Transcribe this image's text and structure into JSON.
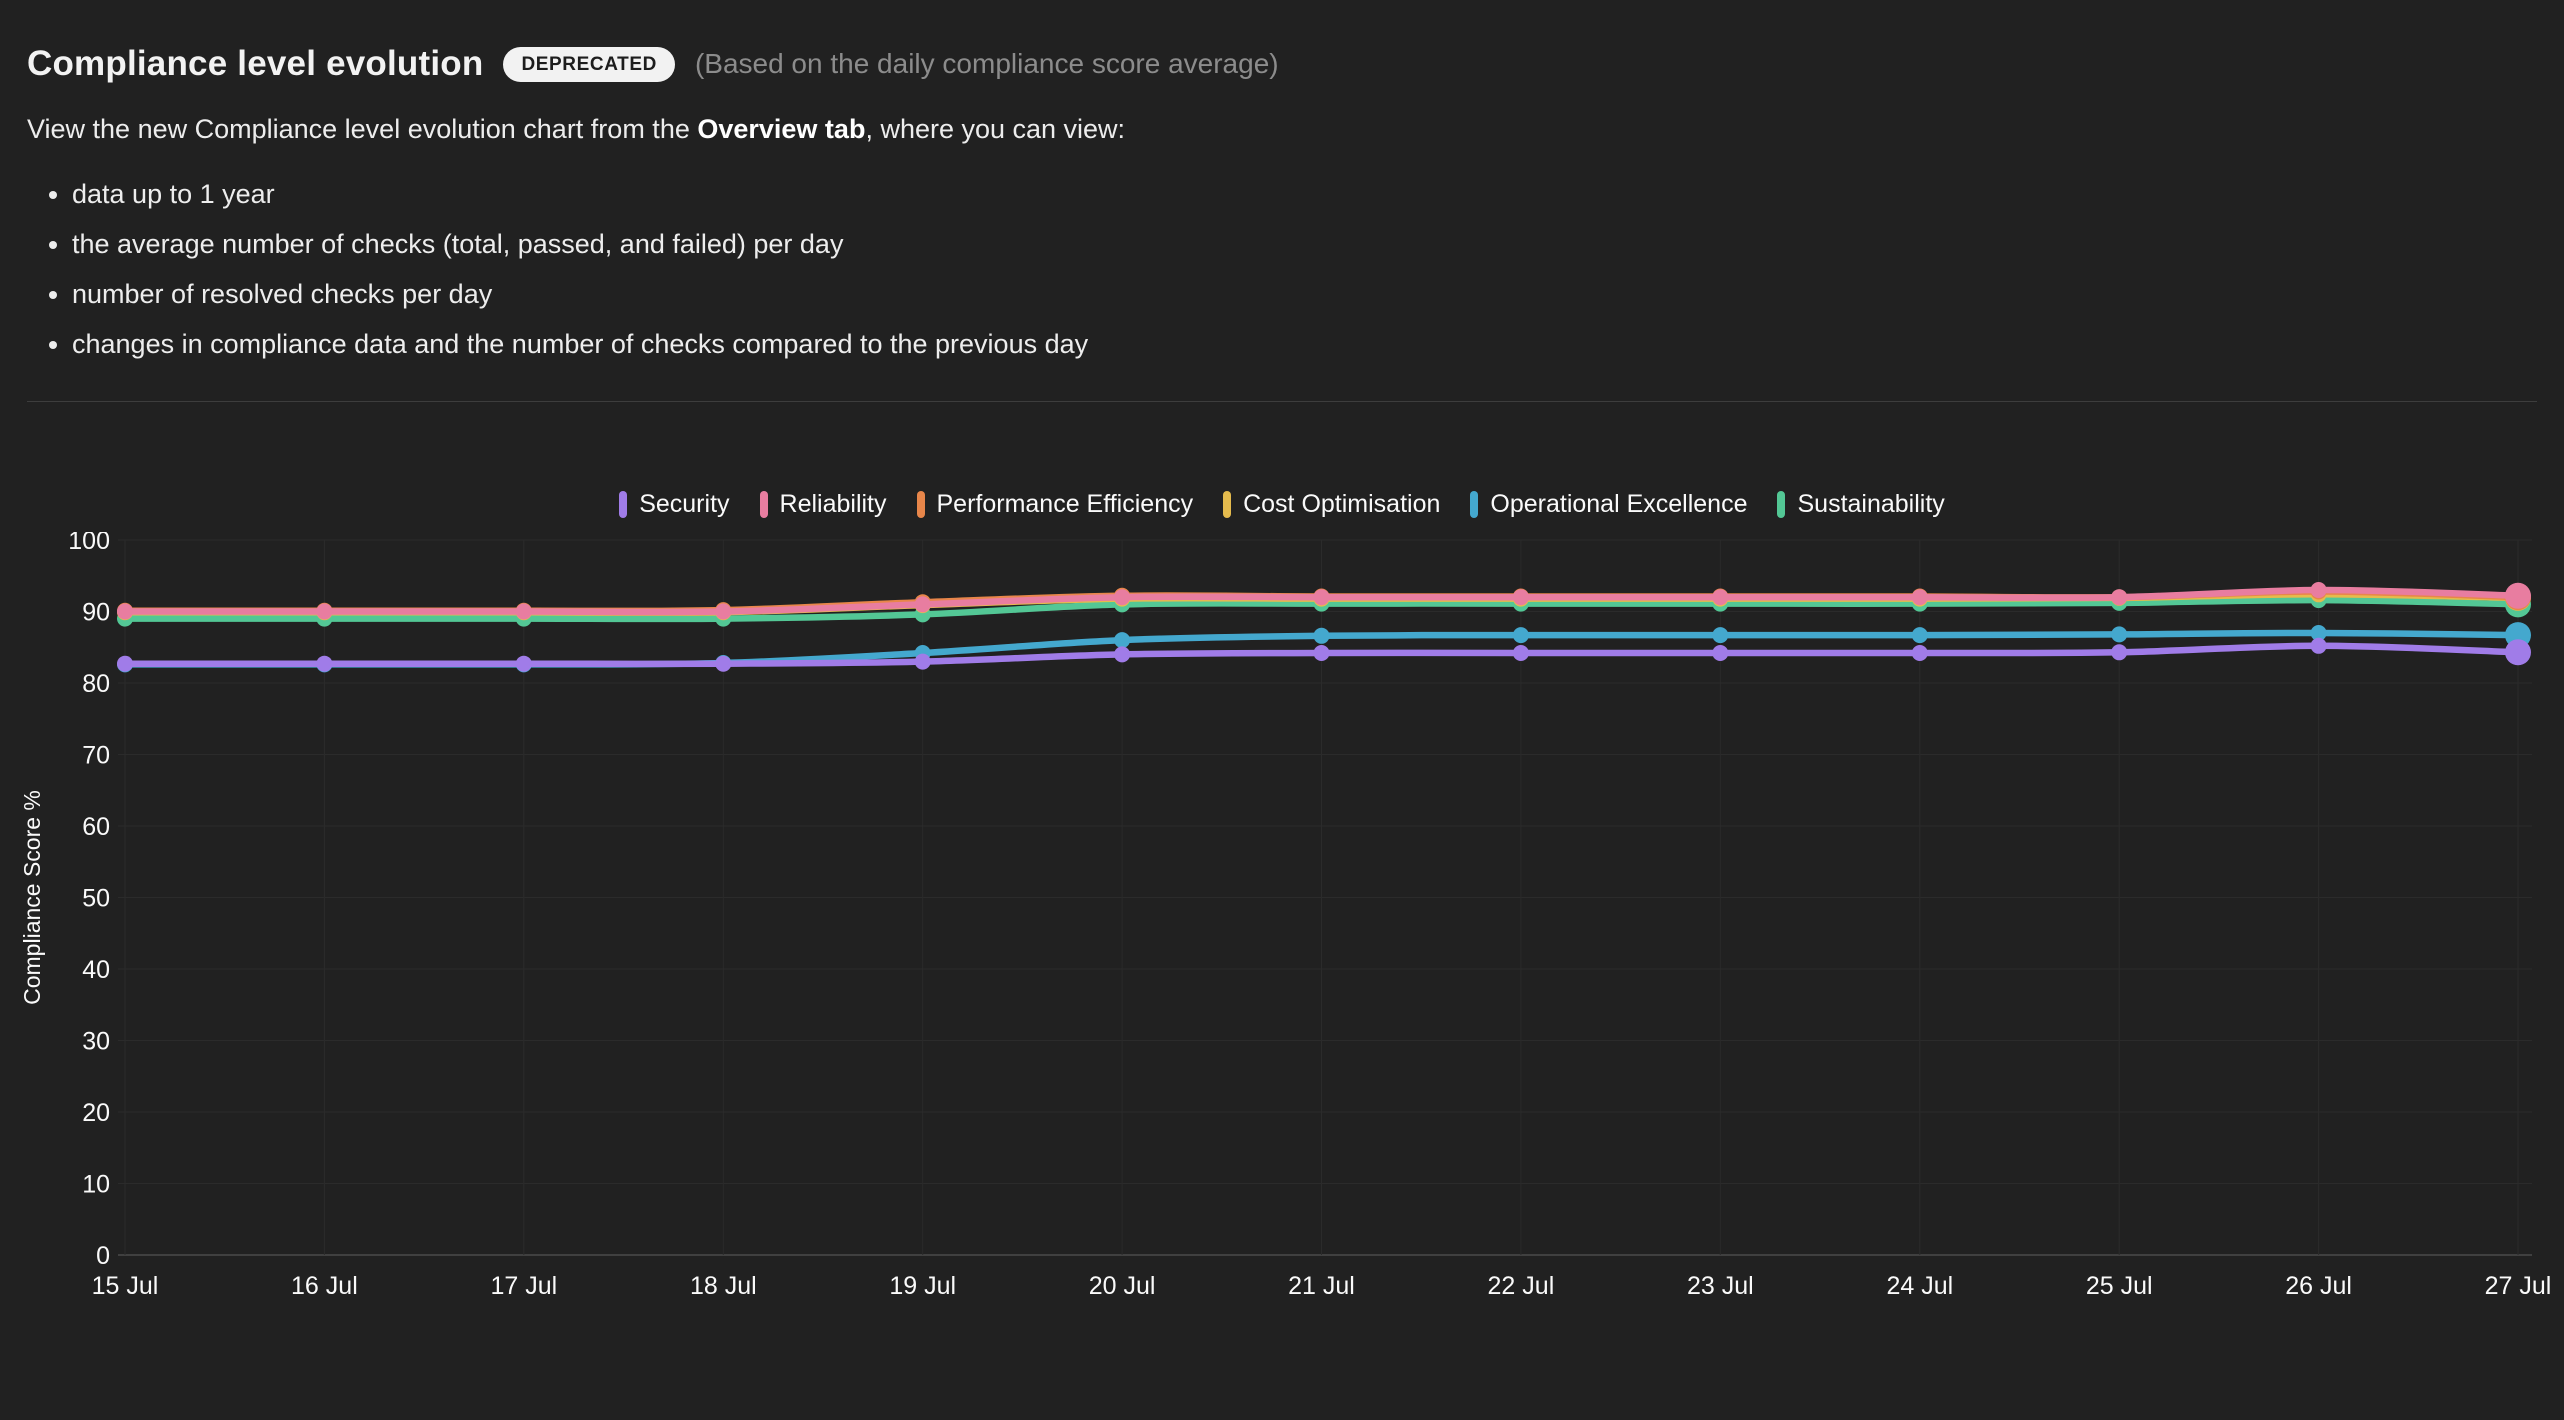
{
  "header": {
    "title": "Compliance level evolution",
    "badge": "DEPRECATED",
    "subtitle": "(Based on the daily compliance score average)"
  },
  "description": {
    "prefix": "View the new Compliance level evolution chart from the ",
    "bold": "Overview tab",
    "suffix": ", where you can view:",
    "bullets": [
      "data up to 1 year",
      "the average number of checks (total, passed, and failed) per day",
      "number of resolved checks per day",
      "changes in compliance data and the number of checks compared to the previous day"
    ]
  },
  "theme": {
    "background": "#212121",
    "text": "#f2f2f2",
    "muted": "#8c8c8c",
    "badge_bg": "#f2f2f2",
    "badge_text": "#1d1d1d",
    "grid": "#2b2b2b",
    "axis_line": "#4a4a4a",
    "divider": "#3d3d3d"
  },
  "chart_data": {
    "type": "line",
    "title": "Compliance level evolution",
    "xlabel": "",
    "ylabel": "Compliance Score %",
    "ylim": [
      0,
      100
    ],
    "yticks": [
      0,
      10,
      20,
      30,
      40,
      50,
      60,
      70,
      80,
      90,
      100
    ],
    "grid": true,
    "legend_position": "top",
    "x": [
      "15 Jul",
      "16 Jul",
      "17 Jul",
      "18 Jul",
      "19 Jul",
      "20 Jul",
      "21 Jul",
      "22 Jul",
      "23 Jul",
      "24 Jul",
      "25 Jul",
      "26 Jul",
      "27 Jul"
    ],
    "series": [
      {
        "name": "Security",
        "color": "#A07CE8",
        "values": [
          82.7,
          82.7,
          82.7,
          82.7,
          83.0,
          84.0,
          84.2,
          84.2,
          84.2,
          84.2,
          84.3,
          85.2,
          84.3
        ]
      },
      {
        "name": "Reliability",
        "color": "#E87DA0",
        "values": [
          90.0,
          90.0,
          90.0,
          90.0,
          91.0,
          92.0,
          92.0,
          92.0,
          92.0,
          92.0,
          92.0,
          93.0,
          92.2
        ]
      },
      {
        "name": "Performance Efficiency",
        "color": "#E8864A",
        "values": [
          90.1,
          90.1,
          90.1,
          90.2,
          91.3,
          92.2,
          92.1,
          92.1,
          92.1,
          92.1,
          92.0,
          92.8,
          92.0
        ]
      },
      {
        "name": "Cost Optimisation",
        "color": "#E5BB4D",
        "values": [
          89.9,
          89.9,
          89.9,
          89.9,
          90.9,
          91.8,
          91.8,
          91.8,
          91.8,
          91.8,
          91.9,
          92.4,
          91.9
        ]
      },
      {
        "name": "Operational Excellence",
        "color": "#44A8CE",
        "values": [
          82.6,
          82.6,
          82.6,
          82.8,
          84.2,
          86.0,
          86.6,
          86.7,
          86.7,
          86.7,
          86.8,
          87.0,
          86.7
        ]
      },
      {
        "name": "Sustainability",
        "color": "#53C795",
        "values": [
          89.0,
          89.0,
          89.0,
          89.0,
          89.6,
          91.0,
          91.1,
          91.1,
          91.1,
          91.1,
          91.2,
          91.6,
          91.0
        ]
      }
    ]
  }
}
